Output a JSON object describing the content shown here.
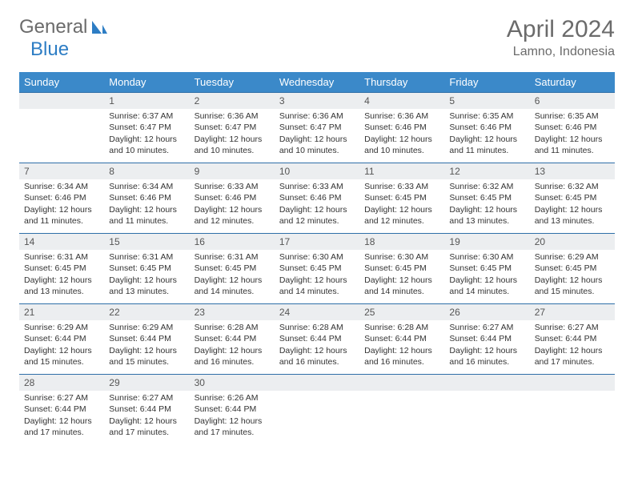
{
  "logo": {
    "text1": "General",
    "text2": "Blue"
  },
  "title": "April 2024",
  "location": "Lamno, Indonesia",
  "colors": {
    "header_bg": "#3b89c9",
    "header_text": "#ffffff",
    "daynum_bg": "#eceef0",
    "daynum_border": "#2f6fa8",
    "text": "#333333",
    "logo_gray": "#6b6b6b",
    "logo_blue": "#2d7dc4"
  },
  "weekdays": [
    "Sunday",
    "Monday",
    "Tuesday",
    "Wednesday",
    "Thursday",
    "Friday",
    "Saturday"
  ],
  "weeks": [
    [
      null,
      {
        "n": "1",
        "sr": "6:37 AM",
        "ss": "6:47 PM",
        "dl": "12 hours and 10 minutes."
      },
      {
        "n": "2",
        "sr": "6:36 AM",
        "ss": "6:47 PM",
        "dl": "12 hours and 10 minutes."
      },
      {
        "n": "3",
        "sr": "6:36 AM",
        "ss": "6:47 PM",
        "dl": "12 hours and 10 minutes."
      },
      {
        "n": "4",
        "sr": "6:36 AM",
        "ss": "6:46 PM",
        "dl": "12 hours and 10 minutes."
      },
      {
        "n": "5",
        "sr": "6:35 AM",
        "ss": "6:46 PM",
        "dl": "12 hours and 11 minutes."
      },
      {
        "n": "6",
        "sr": "6:35 AM",
        "ss": "6:46 PM",
        "dl": "12 hours and 11 minutes."
      }
    ],
    [
      {
        "n": "7",
        "sr": "6:34 AM",
        "ss": "6:46 PM",
        "dl": "12 hours and 11 minutes."
      },
      {
        "n": "8",
        "sr": "6:34 AM",
        "ss": "6:46 PM",
        "dl": "12 hours and 11 minutes."
      },
      {
        "n": "9",
        "sr": "6:33 AM",
        "ss": "6:46 PM",
        "dl": "12 hours and 12 minutes."
      },
      {
        "n": "10",
        "sr": "6:33 AM",
        "ss": "6:46 PM",
        "dl": "12 hours and 12 minutes."
      },
      {
        "n": "11",
        "sr": "6:33 AM",
        "ss": "6:45 PM",
        "dl": "12 hours and 12 minutes."
      },
      {
        "n": "12",
        "sr": "6:32 AM",
        "ss": "6:45 PM",
        "dl": "12 hours and 13 minutes."
      },
      {
        "n": "13",
        "sr": "6:32 AM",
        "ss": "6:45 PM",
        "dl": "12 hours and 13 minutes."
      }
    ],
    [
      {
        "n": "14",
        "sr": "6:31 AM",
        "ss": "6:45 PM",
        "dl": "12 hours and 13 minutes."
      },
      {
        "n": "15",
        "sr": "6:31 AM",
        "ss": "6:45 PM",
        "dl": "12 hours and 13 minutes."
      },
      {
        "n": "16",
        "sr": "6:31 AM",
        "ss": "6:45 PM",
        "dl": "12 hours and 14 minutes."
      },
      {
        "n": "17",
        "sr": "6:30 AM",
        "ss": "6:45 PM",
        "dl": "12 hours and 14 minutes."
      },
      {
        "n": "18",
        "sr": "6:30 AM",
        "ss": "6:45 PM",
        "dl": "12 hours and 14 minutes."
      },
      {
        "n": "19",
        "sr": "6:30 AM",
        "ss": "6:45 PM",
        "dl": "12 hours and 14 minutes."
      },
      {
        "n": "20",
        "sr": "6:29 AM",
        "ss": "6:45 PM",
        "dl": "12 hours and 15 minutes."
      }
    ],
    [
      {
        "n": "21",
        "sr": "6:29 AM",
        "ss": "6:44 PM",
        "dl": "12 hours and 15 minutes."
      },
      {
        "n": "22",
        "sr": "6:29 AM",
        "ss": "6:44 PM",
        "dl": "12 hours and 15 minutes."
      },
      {
        "n": "23",
        "sr": "6:28 AM",
        "ss": "6:44 PM",
        "dl": "12 hours and 16 minutes."
      },
      {
        "n": "24",
        "sr": "6:28 AM",
        "ss": "6:44 PM",
        "dl": "12 hours and 16 minutes."
      },
      {
        "n": "25",
        "sr": "6:28 AM",
        "ss": "6:44 PM",
        "dl": "12 hours and 16 minutes."
      },
      {
        "n": "26",
        "sr": "6:27 AM",
        "ss": "6:44 PM",
        "dl": "12 hours and 16 minutes."
      },
      {
        "n": "27",
        "sr": "6:27 AM",
        "ss": "6:44 PM",
        "dl": "12 hours and 17 minutes."
      }
    ],
    [
      {
        "n": "28",
        "sr": "6:27 AM",
        "ss": "6:44 PM",
        "dl": "12 hours and 17 minutes."
      },
      {
        "n": "29",
        "sr": "6:27 AM",
        "ss": "6:44 PM",
        "dl": "12 hours and 17 minutes."
      },
      {
        "n": "30",
        "sr": "6:26 AM",
        "ss": "6:44 PM",
        "dl": "12 hours and 17 minutes."
      },
      null,
      null,
      null,
      null
    ]
  ],
  "labels": {
    "sunrise": "Sunrise: ",
    "sunset": "Sunset: ",
    "daylight": "Daylight: "
  }
}
